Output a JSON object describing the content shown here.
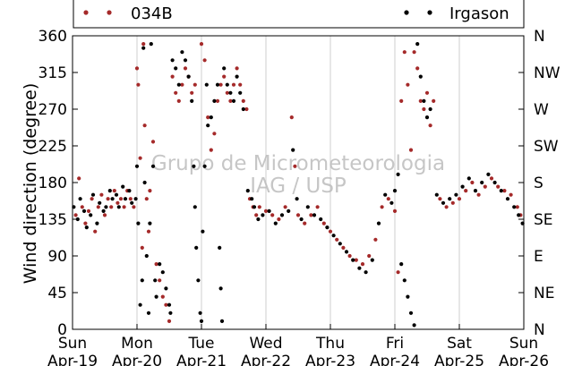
{
  "chart_data": {
    "type": "scatter",
    "title": "",
    "ylabel": "Wind direction (degree)",
    "ylim": [
      0,
      360
    ],
    "y_ticks": [
      0,
      45,
      90,
      135,
      180,
      225,
      270,
      315,
      360
    ],
    "y_ticks_right": [
      "N",
      "NE",
      "E",
      "SE",
      "S",
      "SW",
      "W",
      "NW",
      "N"
    ],
    "x_ticks": [
      {
        "day": "Sun",
        "date": "Apr-19"
      },
      {
        "day": "Mon",
        "date": "Apr-20"
      },
      {
        "day": "Tue",
        "date": "Apr-21"
      },
      {
        "day": "Wed",
        "date": "Apr-22"
      },
      {
        "day": "Thu",
        "date": "Apr-23"
      },
      {
        "day": "Fri",
        "date": "Apr-24"
      },
      {
        "day": "Sat",
        "date": "Apr-25"
      },
      {
        "day": "Sun",
        "date": "Apr-26"
      }
    ],
    "xlim": [
      "Apr-19",
      "Apr-26"
    ],
    "grid": "vertical",
    "legend_position": "top",
    "watermark": [
      "Grupo de Micrometeorologia",
      "IAG / USP"
    ],
    "series": [
      {
        "name": "034B",
        "color": "#a52a2a",
        "points": [
          [
            0.05,
            140
          ],
          [
            0.1,
            185
          ],
          [
            0.15,
            150
          ],
          [
            0.2,
            130
          ],
          [
            0.25,
            145
          ],
          [
            0.3,
            160
          ],
          [
            0.35,
            120
          ],
          [
            0.4,
            150
          ],
          [
            0.45,
            165
          ],
          [
            0.5,
            140
          ],
          [
            0.55,
            160
          ],
          [
            0.6,
            150
          ],
          [
            0.65,
            170
          ],
          [
            0.7,
            155
          ],
          [
            0.75,
            160
          ],
          [
            0.8,
            150
          ],
          [
            0.85,
            170
          ],
          [
            0.9,
            160
          ],
          [
            0.95,
            150
          ],
          [
            1.0,
            320
          ],
          [
            1.02,
            300
          ],
          [
            1.05,
            210
          ],
          [
            1.08,
            100
          ],
          [
            1.1,
            350
          ],
          [
            1.12,
            250
          ],
          [
            1.15,
            160
          ],
          [
            1.18,
            120
          ],
          [
            1.2,
            170
          ],
          [
            1.25,
            230
          ],
          [
            1.3,
            80
          ],
          [
            1.35,
            60
          ],
          [
            1.4,
            40
          ],
          [
            1.45,
            30
          ],
          [
            1.5,
            10
          ],
          [
            1.55,
            310
          ],
          [
            1.6,
            290
          ],
          [
            1.65,
            280
          ],
          [
            1.7,
            300
          ],
          [
            1.75,
            320
          ],
          [
            1.8,
            310
          ],
          [
            1.85,
            290
          ],
          [
            1.9,
            300
          ],
          [
            2.0,
            350
          ],
          [
            2.05,
            330
          ],
          [
            2.1,
            260
          ],
          [
            2.15,
            220
          ],
          [
            2.2,
            240
          ],
          [
            2.25,
            280
          ],
          [
            2.3,
            300
          ],
          [
            2.35,
            310
          ],
          [
            2.4,
            290
          ],
          [
            2.45,
            280
          ],
          [
            2.5,
            300
          ],
          [
            2.55,
            320
          ],
          [
            2.6,
            300
          ],
          [
            2.65,
            280
          ],
          [
            2.7,
            270
          ],
          [
            2.75,
            160
          ],
          [
            2.8,
            150
          ],
          [
            2.85,
            140
          ],
          [
            2.9,
            150
          ],
          [
            3.0,
            145
          ],
          [
            3.1,
            140
          ],
          [
            3.2,
            135
          ],
          [
            3.3,
            150
          ],
          [
            3.4,
            260
          ],
          [
            3.45,
            200
          ],
          [
            3.5,
            140
          ],
          [
            3.6,
            130
          ],
          [
            3.7,
            140
          ],
          [
            3.8,
            150
          ],
          [
            3.9,
            130
          ],
          [
            4.0,
            120
          ],
          [
            4.1,
            110
          ],
          [
            4.2,
            100
          ],
          [
            4.3,
            90
          ],
          [
            4.4,
            85
          ],
          [
            4.5,
            80
          ],
          [
            4.6,
            90
          ],
          [
            4.7,
            110
          ],
          [
            4.8,
            150
          ],
          [
            4.9,
            160
          ],
          [
            5.0,
            145
          ],
          [
            5.05,
            70
          ],
          [
            5.1,
            280
          ],
          [
            5.15,
            340
          ],
          [
            5.2,
            300
          ],
          [
            5.25,
            220
          ],
          [
            5.3,
            340
          ],
          [
            5.35,
            320
          ],
          [
            5.4,
            280
          ],
          [
            5.45,
            270
          ],
          [
            5.5,
            290
          ],
          [
            5.55,
            250
          ],
          [
            5.6,
            280
          ],
          [
            5.7,
            160
          ],
          [
            5.8,
            150
          ],
          [
            5.9,
            155
          ],
          [
            6.0,
            160
          ],
          [
            6.1,
            170
          ],
          [
            6.2,
            180
          ],
          [
            6.3,
            165
          ],
          [
            6.4,
            175
          ],
          [
            6.5,
            185
          ],
          [
            6.6,
            175
          ],
          [
            6.7,
            170
          ],
          [
            6.8,
            165
          ],
          [
            6.9,
            150
          ],
          [
            6.95,
            140
          ]
        ]
      },
      {
        "name": "Irgason",
        "color": "#000000",
        "points": [
          [
            0.02,
            150
          ],
          [
            0.08,
            135
          ],
          [
            0.12,
            160
          ],
          [
            0.18,
            145
          ],
          [
            0.22,
            125
          ],
          [
            0.28,
            140
          ],
          [
            0.32,
            165
          ],
          [
            0.38,
            130
          ],
          [
            0.42,
            155
          ],
          [
            0.48,
            145
          ],
          [
            0.52,
            150
          ],
          [
            0.58,
            170
          ],
          [
            0.62,
            160
          ],
          [
            0.68,
            165
          ],
          [
            0.72,
            150
          ],
          [
            0.78,
            175
          ],
          [
            0.82,
            160
          ],
          [
            0.88,
            170
          ],
          [
            0.92,
            155
          ],
          [
            0.98,
            160
          ],
          [
            1.0,
            200
          ],
          [
            1.02,
            130
          ],
          [
            1.05,
            30
          ],
          [
            1.08,
            60
          ],
          [
            1.1,
            345
          ],
          [
            1.12,
            180
          ],
          [
            1.15,
            90
          ],
          [
            1.18,
            20
          ],
          [
            1.2,
            130
          ],
          [
            1.22,
            350
          ],
          [
            1.25,
            200
          ],
          [
            1.28,
            60
          ],
          [
            1.3,
            40
          ],
          [
            1.35,
            80
          ],
          [
            1.4,
            70
          ],
          [
            1.45,
            50
          ],
          [
            1.5,
            30
          ],
          [
            1.52,
            20
          ],
          [
            1.55,
            330
          ],
          [
            1.6,
            320
          ],
          [
            1.65,
            300
          ],
          [
            1.7,
            340
          ],
          [
            1.75,
            330
          ],
          [
            1.8,
            310
          ],
          [
            1.85,
            280
          ],
          [
            1.88,
            200
          ],
          [
            1.9,
            150
          ],
          [
            1.92,
            100
          ],
          [
            1.95,
            60
          ],
          [
            1.98,
            20
          ],
          [
            2.0,
            10
          ],
          [
            2.02,
            120
          ],
          [
            2.05,
            200
          ],
          [
            2.08,
            300
          ],
          [
            2.1,
            250
          ],
          [
            2.15,
            260
          ],
          [
            2.2,
            280
          ],
          [
            2.25,
            300
          ],
          [
            2.28,
            100
          ],
          [
            2.3,
            50
          ],
          [
            2.32,
            10
          ],
          [
            2.35,
            320
          ],
          [
            2.4,
            300
          ],
          [
            2.45,
            290
          ],
          [
            2.5,
            280
          ],
          [
            2.55,
            310
          ],
          [
            2.6,
            290
          ],
          [
            2.65,
            270
          ],
          [
            2.72,
            170
          ],
          [
            2.78,
            160
          ],
          [
            2.82,
            150
          ],
          [
            2.88,
            135
          ],
          [
            2.95,
            140
          ],
          [
            3.05,
            145
          ],
          [
            3.15,
            130
          ],
          [
            3.25,
            140
          ],
          [
            3.35,
            145
          ],
          [
            3.42,
            220
          ],
          [
            3.48,
            160
          ],
          [
            3.55,
            135
          ],
          [
            3.65,
            150
          ],
          [
            3.75,
            140
          ],
          [
            3.85,
            135
          ],
          [
            3.95,
            125
          ],
          [
            4.05,
            115
          ],
          [
            4.15,
            105
          ],
          [
            4.25,
            95
          ],
          [
            4.35,
            85
          ],
          [
            4.45,
            75
          ],
          [
            4.55,
            70
          ],
          [
            4.65,
            85
          ],
          [
            4.75,
            130
          ],
          [
            4.85,
            165
          ],
          [
            4.95,
            155
          ],
          [
            5.0,
            170
          ],
          [
            5.05,
            190
          ],
          [
            5.1,
            80
          ],
          [
            5.15,
            60
          ],
          [
            5.2,
            40
          ],
          [
            5.25,
            20
          ],
          [
            5.3,
            5
          ],
          [
            5.35,
            350
          ],
          [
            5.4,
            310
          ],
          [
            5.45,
            280
          ],
          [
            5.5,
            260
          ],
          [
            5.55,
            270
          ],
          [
            5.65,
            165
          ],
          [
            5.75,
            155
          ],
          [
            5.85,
            160
          ],
          [
            5.95,
            165
          ],
          [
            6.05,
            175
          ],
          [
            6.15,
            185
          ],
          [
            6.25,
            170
          ],
          [
            6.35,
            180
          ],
          [
            6.45,
            190
          ],
          [
            6.55,
            180
          ],
          [
            6.65,
            170
          ],
          [
            6.75,
            160
          ],
          [
            6.85,
            150
          ],
          [
            6.92,
            140
          ],
          [
            6.98,
            130
          ]
        ]
      }
    ]
  }
}
